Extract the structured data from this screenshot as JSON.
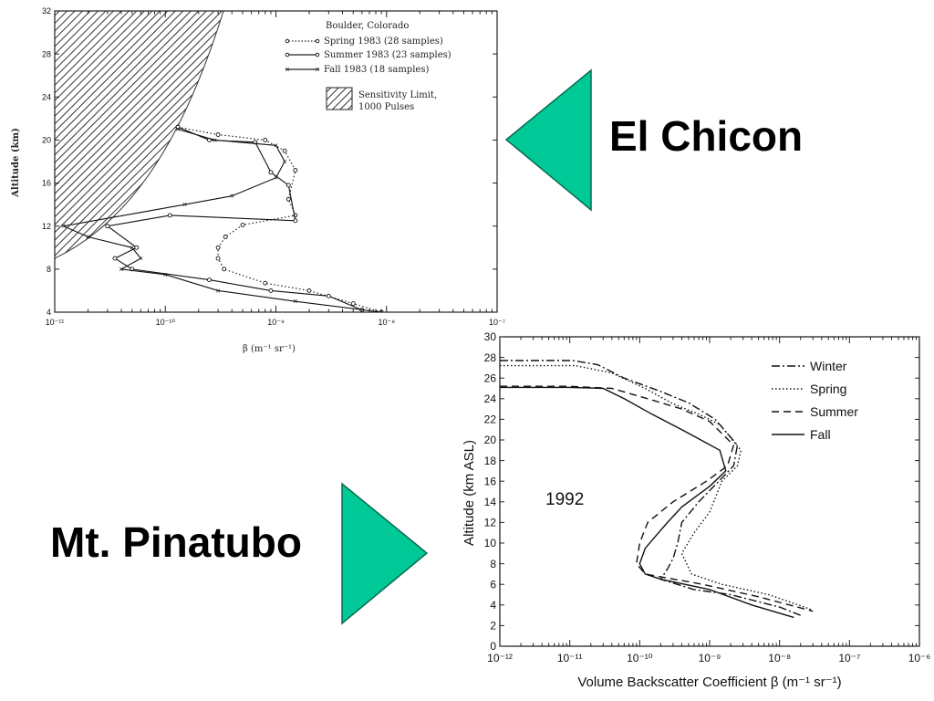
{
  "labels": {
    "el_chicon": "El Chicon",
    "pinatubo": "Mt. Pinatubo"
  },
  "colors": {
    "arrow": "#00c896",
    "arrow_edge": "#0a6b50"
  },
  "chart_data": [
    {
      "type": "line",
      "xscale": "log",
      "xlim": [
        1e-11,
        1e-07
      ],
      "ylim": [
        4,
        32
      ],
      "yticks": [
        "4",
        "8",
        "12",
        "16",
        "20",
        "24",
        "28",
        "32"
      ],
      "xticks": [
        "10⁻¹¹",
        "10⁻¹⁰",
        "10⁻⁹",
        "10⁻⁸",
        "10⁻⁷"
      ],
      "ylabel": "Altitude (km)",
      "xlabel": "β (m⁻¹ sr⁻¹)",
      "legend_title": "Boulder, Colorado",
      "legend_position": "top-right",
      "sensitivity_label_1": "Sensitivity Limit,",
      "sensitivity_label_2": "1000 Pulses",
      "series": [
        {
          "name": "Spring 1983 (28 samples)",
          "style": "dotted",
          "marker": "circle",
          "x": [
            1.3e-10,
            3e-10,
            8e-10,
            1.2e-09,
            1.5e-09,
            1.3e-09,
            1.5e-09,
            5e-10,
            3.5e-10,
            3e-10,
            3e-10,
            3.4e-10,
            8e-10,
            2e-09,
            5e-09,
            9e-09
          ],
          "y": [
            21.2,
            20.5,
            20.0,
            19.0,
            17.2,
            14.5,
            13.0,
            12.1,
            11.0,
            10.0,
            9.0,
            8.0,
            6.7,
            6.0,
            4.8,
            4.0
          ]
        },
        {
          "name": "Summer 1983 (23 samples)",
          "style": "solid",
          "marker": "circle",
          "x": [
            1.3e-10,
            2.5e-10,
            6.5e-10,
            9e-10,
            1.3e-09,
            1.5e-09,
            1.1e-10,
            3e-11,
            5.5e-11,
            3.5e-11,
            5e-11,
            2.5e-10,
            9e-10,
            3e-09,
            6e-09
          ],
          "y": [
            21.2,
            20.0,
            19.8,
            17.0,
            15.8,
            12.5,
            13.0,
            12.0,
            10.0,
            9.0,
            8.0,
            7.0,
            6.0,
            5.5,
            4.2
          ]
        },
        {
          "name": "Fall 1983 (18 samples)",
          "style": "solid",
          "marker": "x",
          "x": [
            1.3e-10,
            2.8e-10,
            1e-09,
            1.2e-09,
            1e-09,
            4e-10,
            1.5e-10,
            1.2e-11,
            2e-11,
            5e-11,
            6e-11,
            4e-11,
            1e-10,
            3e-10,
            1.5e-09,
            9e-09
          ],
          "y": [
            21.0,
            20.0,
            19.5,
            18.0,
            16.5,
            14.8,
            14.0,
            12.0,
            11.0,
            10.0,
            9.0,
            8.0,
            7.5,
            6.0,
            5.0,
            4.0
          ]
        }
      ]
    },
    {
      "type": "line",
      "xscale": "log",
      "xlim": [
        1e-12,
        1e-06
      ],
      "ylim": [
        0,
        30
      ],
      "yticks": [
        "0",
        "2",
        "4",
        "6",
        "8",
        "10",
        "12",
        "14",
        "16",
        "18",
        "20",
        "22",
        "24",
        "26",
        "28",
        "30"
      ],
      "xticks": [
        "10⁻¹²",
        "10⁻¹¹",
        "10⁻¹⁰",
        "10⁻⁹",
        "10⁻⁸",
        "10⁻⁷",
        "10⁻⁶"
      ],
      "ylabel": "Altitude (km ASL)",
      "xlabel": "Volume Backscatter Coefficient β (m⁻¹ sr⁻¹)",
      "annotation": "1992",
      "legend_position": "top-right",
      "series": [
        {
          "name": "Winter",
          "style": "dashdot",
          "x": [
            1e-12,
            1.1e-11,
            2.5e-11,
            6e-11,
            2e-10,
            5e-10,
            1.2e-09,
            2.5e-09,
            2.2e-09,
            1.6e-09,
            7e-10,
            4e-10,
            3.5e-10,
            3e-10,
            2.5e-10,
            2e-10,
            6e-10,
            2e-09,
            1e-08,
            2e-08
          ],
          "y": [
            27.7,
            27.7,
            27.3,
            26.0,
            24.7,
            23.6,
            22.0,
            19.5,
            17.5,
            16.5,
            14.0,
            12.0,
            10.0,
            8.5,
            7.5,
            6.5,
            5.5,
            5.0,
            3.8,
            3.0
          ]
        },
        {
          "name": "Spring",
          "style": "dotted",
          "x": [
            1e-12,
            1.2e-11,
            4e-11,
            1.2e-10,
            3e-10,
            7e-10,
            1.4e-09,
            2.8e-09,
            2.5e-09,
            1.5e-09,
            1e-09,
            6e-10,
            4e-10,
            5.5e-10,
            1.5e-09,
            7e-09,
            3e-08
          ],
          "y": [
            27.2,
            27.2,
            26.5,
            25.0,
            23.5,
            22.5,
            21.5,
            19.0,
            17.5,
            16.0,
            13.0,
            11.0,
            9.0,
            7.0,
            6.0,
            5.0,
            3.5
          ]
        },
        {
          "name": "Summer",
          "style": "dashed",
          "x": [
            1e-12,
            1e-11,
            4e-11,
            1.3e-10,
            4e-10,
            1e-09,
            2.2e-09,
            1.8e-09,
            9e-10,
            3e-10,
            1.3e-10,
            1e-10,
            9e-11,
            1.2e-10,
            8e-10,
            5e-09,
            3e-08
          ],
          "y": [
            25.2,
            25.2,
            25.0,
            24.0,
            23.0,
            21.8,
            19.5,
            17.5,
            16.0,
            14.0,
            12.0,
            10.0,
            8.0,
            7.0,
            6.0,
            4.8,
            3.4
          ]
        },
        {
          "name": "Fall",
          "style": "solid",
          "x": [
            1e-12,
            1e-11,
            3e-11,
            6e-11,
            1.5e-10,
            4e-10,
            1.4e-09,
            1.7e-09,
            1e-09,
            4e-10,
            2.5e-10,
            1.6e-10,
            1.2e-10,
            1e-10,
            1.2e-10,
            2e-10,
            1e-09,
            4e-09,
            1.6e-08
          ],
          "y": [
            25.1,
            25.1,
            25.0,
            24.0,
            22.5,
            21.0,
            19.0,
            17.0,
            15.5,
            13.5,
            12.0,
            10.5,
            9.5,
            8.0,
            7.0,
            6.5,
            5.5,
            4.0,
            2.8
          ]
        }
      ]
    }
  ]
}
